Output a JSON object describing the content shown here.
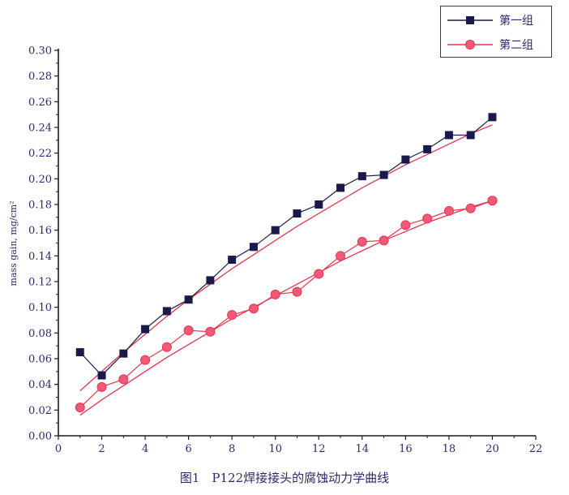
{
  "chart_data": {
    "type": "line",
    "ylabel": "mass gain, mg/cm²",
    "xlabel": "",
    "xlim": [
      0,
      22
    ],
    "ylim": [
      0,
      0.3
    ],
    "x_ticks": [
      "0",
      "2",
      "4",
      "6",
      "8",
      "10",
      "12",
      "14",
      "16",
      "18",
      "20",
      "22"
    ],
    "y_ticks": [
      "0.00",
      "0.02",
      "0.04",
      "0.06",
      "0.08",
      "0.10",
      "0.12",
      "0.14",
      "0.16",
      "0.18",
      "0.20",
      "0.22",
      "0.24",
      "0.26",
      "0.28",
      "0.30"
    ],
    "legend_position": "top-right",
    "grid": false,
    "series": [
      {
        "name": "第一组",
        "marker": "square",
        "color": "#1a1a4a",
        "x": [
          1,
          2,
          3,
          4,
          5,
          6,
          7,
          8,
          9,
          10,
          11,
          12,
          13,
          14,
          15,
          16,
          17,
          18,
          19,
          20
        ],
        "values": [
          0.065,
          0.047,
          0.064,
          0.083,
          0.097,
          0.106,
          0.121,
          0.137,
          0.147,
          0.16,
          0.173,
          0.18,
          0.193,
          0.202,
          0.203,
          0.215,
          0.223,
          0.234,
          0.234,
          0.248
        ]
      },
      {
        "name": "第二组",
        "marker": "circle",
        "color": "#f05a78",
        "x": [
          1,
          2,
          3,
          4,
          5,
          6,
          7,
          8,
          9,
          10,
          11,
          12,
          13,
          14,
          15,
          16,
          17,
          18,
          19,
          20
        ],
        "values": [
          0.022,
          0.038,
          0.044,
          0.059,
          0.069,
          0.082,
          0.081,
          0.094,
          0.099,
          0.11,
          0.112,
          0.126,
          0.14,
          0.151,
          0.152,
          0.164,
          0.169,
          0.175,
          0.177,
          0.183
        ]
      }
    ],
    "fit_curves": [
      {
        "for": "第一组",
        "color": "#e8344e",
        "x": [
          1,
          2,
          3,
          4,
          5,
          6,
          7,
          8,
          9,
          10,
          11,
          12,
          13,
          14,
          15,
          16,
          17,
          18,
          19,
          20
        ],
        "values": [
          0.035,
          0.05,
          0.065,
          0.079,
          0.093,
          0.106,
          0.118,
          0.13,
          0.141,
          0.152,
          0.163,
          0.173,
          0.183,
          0.193,
          0.202,
          0.211,
          0.219,
          0.227,
          0.235,
          0.242
        ]
      },
      {
        "for": "第二组",
        "color": "#e8344e",
        "x": [
          1,
          2,
          3,
          4,
          5,
          6,
          7,
          8,
          9,
          10,
          11,
          12,
          13,
          14,
          15,
          16,
          17,
          18,
          19,
          20
        ],
        "values": [
          0.016,
          0.028,
          0.039,
          0.05,
          0.061,
          0.071,
          0.081,
          0.091,
          0.1,
          0.109,
          0.118,
          0.127,
          0.136,
          0.144,
          0.152,
          0.159,
          0.166,
          0.172,
          0.178,
          0.183
        ]
      }
    ]
  },
  "caption": "图1　P122焊接接头的腐蚀动力学曲线"
}
